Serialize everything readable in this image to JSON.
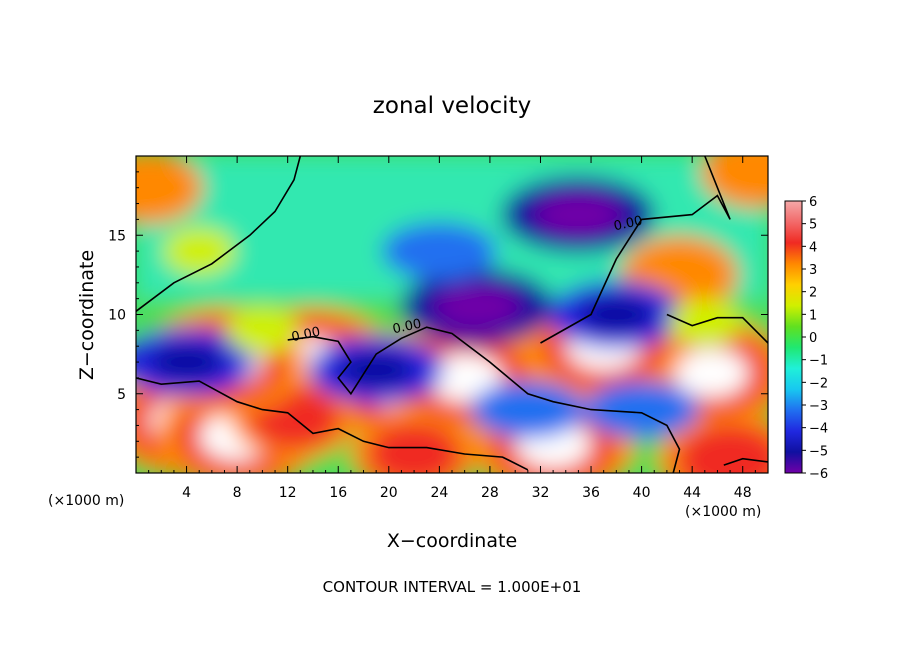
{
  "chart_data": {
    "type": "heatmap",
    "title": "zonal velocity",
    "xlabel": "X−coordinate",
    "ylabel": "Z−coordinate",
    "x_unit_left": "(×1000 m)",
    "x_unit_right": "(×1000 m)",
    "footer": "CONTOUR INTERVAL = 1.000E+01",
    "xlim": [
      0,
      50
    ],
    "ylim": [
      0,
      20
    ],
    "x_ticks": [
      4,
      8,
      12,
      16,
      20,
      24,
      28,
      32,
      36,
      40,
      44,
      48
    ],
    "y_ticks": [
      5,
      10,
      15
    ],
    "contour_labels": [
      {
        "text": "0.00",
        "x": 13.5,
        "y": 8.5
      },
      {
        "text": "0.00",
        "x": 21.5,
        "y": 9.0
      },
      {
        "text": "0.00",
        "x": 39.0,
        "y": 15.5
      }
    ],
    "colorbar": {
      "ticks": [
        "6",
        "5",
        "4",
        "3",
        "2",
        "1",
        "0",
        "−1",
        "−2",
        "−3",
        "−4",
        "−5",
        "−6"
      ],
      "colors": [
        "#f4a8a8",
        "#f26a6a",
        "#f02a22",
        "#ff8800",
        "#ffd000",
        "#d0f000",
        "#60e020",
        "#20e870",
        "#20f0d8",
        "#18c8f0",
        "#2070f0",
        "#2028e0",
        "#1010a0",
        "#7000a8"
      ]
    },
    "blobs": [
      {
        "x": 14,
        "y": 7,
        "v": 6
      },
      {
        "x": 4,
        "y": 3.2,
        "v": 6
      },
      {
        "x": 8,
        "y": 2.3,
        "v": 6
      },
      {
        "x": 21,
        "y": 5.5,
        "v": 6
      },
      {
        "x": 26,
        "y": 6,
        "v": 6
      },
      {
        "x": 33,
        "y": 1.8,
        "v": 6
      },
      {
        "x": 45.5,
        "y": 6.3,
        "v": 6
      },
      {
        "x": 47,
        "y": 0.8,
        "v": 5
      },
      {
        "x": 22,
        "y": 1.2,
        "v": 4
      },
      {
        "x": 12.5,
        "y": 3.5,
        "v": 4
      },
      {
        "x": 43,
        "y": 12.5,
        "v": 3.5
      },
      {
        "x": 7,
        "y": 7,
        "v": 6
      },
      {
        "x": 37,
        "y": 8,
        "v": 6
      },
      {
        "x": 1,
        "y": 18,
        "v": 3
      },
      {
        "x": 49,
        "y": 19,
        "v": 3
      },
      {
        "x": 35,
        "y": 16.3,
        "v": -5
      },
      {
        "x": 27,
        "y": 10.5,
        "v": -5
      },
      {
        "x": 38,
        "y": 10,
        "v": -4
      },
      {
        "x": 24,
        "y": 14,
        "v": -3
      },
      {
        "x": 4,
        "y": 7,
        "v": -4
      },
      {
        "x": 19,
        "y": 6.5,
        "v": -4
      },
      {
        "x": 31,
        "y": 4,
        "v": -3
      },
      {
        "x": 40,
        "y": 4,
        "v": -3
      },
      {
        "x": 10,
        "y": 9,
        "v": 1
      },
      {
        "x": 45,
        "y": 9.5,
        "v": 1
      },
      {
        "x": 5,
        "y": 14,
        "v": 1
      }
    ]
  }
}
